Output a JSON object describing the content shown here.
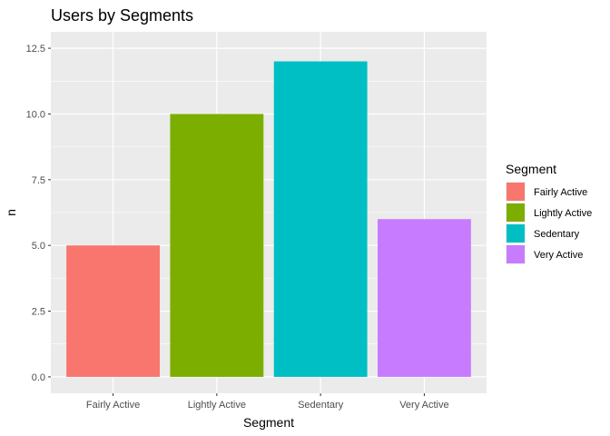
{
  "chart_data": {
    "type": "bar",
    "title": "Users by Segments",
    "xlabel": "Segment",
    "ylabel": "n",
    "categories": [
      "Fairly Active",
      "Lightly Active",
      "Sedentary",
      "Very Active"
    ],
    "values": [
      5,
      10,
      12,
      6
    ],
    "colors": [
      "#F8766D",
      "#7CAE00",
      "#00BFC4",
      "#C77CFF"
    ],
    "ylim": [
      0,
      12.5
    ],
    "yticks": [
      0,
      2.5,
      5,
      7.5,
      10,
      12.5
    ],
    "ytick_labels": [
      "0.0",
      "2.5",
      "5.0",
      "7.5",
      "10.0",
      "12.5"
    ],
    "grid": true,
    "panel_background": "#EBEBEB",
    "legend": {
      "title": "Segment",
      "position": "right",
      "entries": [
        "Fairly Active",
        "Lightly Active",
        "Sedentary",
        "Very Active"
      ]
    }
  }
}
